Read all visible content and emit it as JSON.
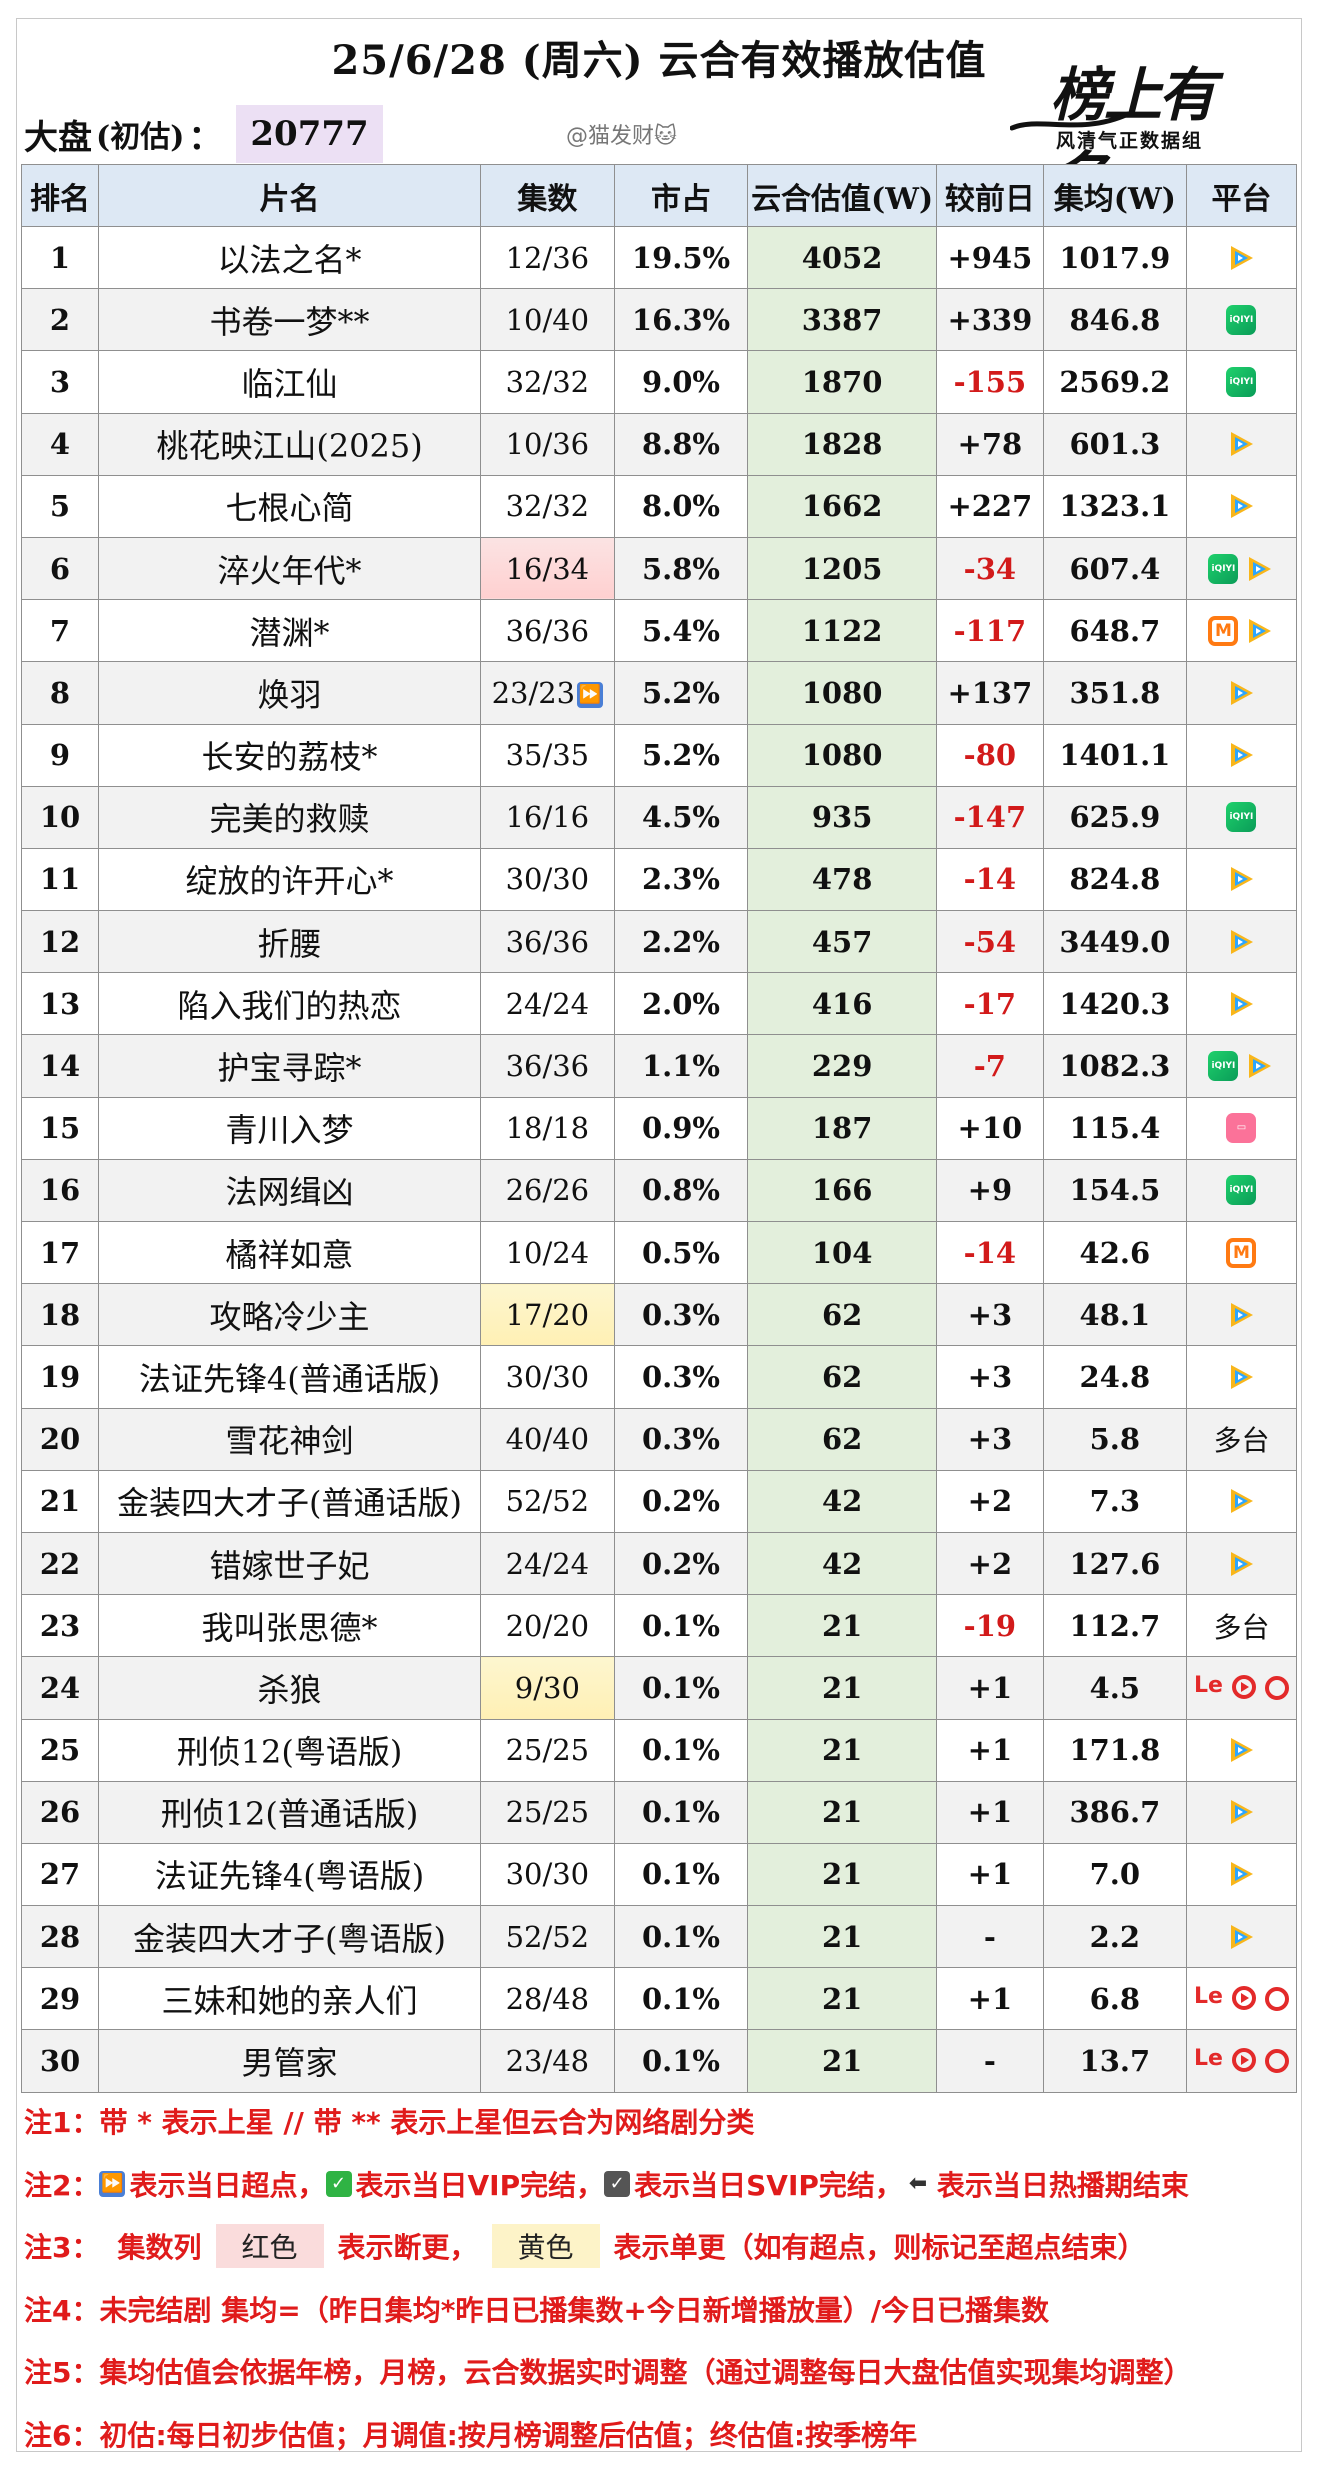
{
  "title": "25/6/28 (周六) 云合有效播放估值",
  "market": {
    "label": "大盘",
    "paren": "(初估)",
    "colon": "：",
    "value": "20777"
  },
  "watermark": "@猫发财🐱",
  "brand": {
    "script": "榜上有名",
    "subtitle": "风清气正数据组"
  },
  "columns": [
    "排名",
    "片名",
    "集数",
    "市占",
    "云合估值(W)",
    "较前日",
    "集均(W)",
    "平台"
  ],
  "rows": [
    {
      "rank": "1",
      "name": "以法之名*",
      "eps": "12/36",
      "share": "19.5%",
      "est": "4052",
      "chg": "+945",
      "avg": "1017.9",
      "plat": [
        "tencent"
      ]
    },
    {
      "rank": "2",
      "name": "书卷一梦**",
      "eps": "10/40",
      "share": "16.3%",
      "est": "3387",
      "chg": "+339",
      "avg": "846.8",
      "plat": [
        "iqiyi"
      ]
    },
    {
      "rank": "3",
      "name": "临江仙",
      "eps": "32/32",
      "share": "9.0%",
      "est": "1870",
      "chg": "-155",
      "avg": "2569.2",
      "plat": [
        "iqiyi"
      ]
    },
    {
      "rank": "4",
      "name": "桃花映江山(2025)",
      "eps": "10/36",
      "share": "8.8%",
      "est": "1828",
      "chg": "+78",
      "avg": "601.3",
      "plat": [
        "tencent"
      ]
    },
    {
      "rank": "5",
      "name": "七根心简",
      "eps": "32/32",
      "share": "8.0%",
      "est": "1662",
      "chg": "+227",
      "avg": "1323.1",
      "plat": [
        "tencent"
      ]
    },
    {
      "rank": "6",
      "name": "淬火年代*",
      "eps": "16/34",
      "share": "5.8%",
      "est": "1205",
      "chg": "-34",
      "avg": "607.4",
      "plat": [
        "iqiyi",
        "tencent"
      ],
      "eps_mark": "red"
    },
    {
      "rank": "7",
      "name": "潜渊*",
      "eps": "36/36",
      "share": "5.4%",
      "est": "1122",
      "chg": "-117",
      "avg": "648.7",
      "plat": [
        "mgtv",
        "tencent"
      ]
    },
    {
      "rank": "8",
      "name": "焕羽",
      "eps": "23/23",
      "share": "5.2%",
      "est": "1080",
      "chg": "+137",
      "avg": "351.8",
      "plat": [
        "tencent"
      ],
      "eps_icon": "fast-forward"
    },
    {
      "rank": "9",
      "name": "长安的荔枝*",
      "eps": "35/35",
      "share": "5.2%",
      "est": "1080",
      "chg": "-80",
      "avg": "1401.1",
      "plat": [
        "tencent"
      ]
    },
    {
      "rank": "10",
      "name": "完美的救赎",
      "eps": "16/16",
      "share": "4.5%",
      "est": "935",
      "chg": "-147",
      "avg": "625.9",
      "plat": [
        "iqiyi"
      ]
    },
    {
      "rank": "11",
      "name": "绽放的许开心*",
      "eps": "30/30",
      "share": "2.3%",
      "est": "478",
      "chg": "-14",
      "avg": "824.8",
      "plat": [
        "tencent"
      ]
    },
    {
      "rank": "12",
      "name": "折腰",
      "eps": "36/36",
      "share": "2.2%",
      "est": "457",
      "chg": "-54",
      "avg": "3449.0",
      "plat": [
        "tencent"
      ]
    },
    {
      "rank": "13",
      "name": "陷入我们的热恋",
      "eps": "24/24",
      "share": "2.0%",
      "est": "416",
      "chg": "-17",
      "avg": "1420.3",
      "plat": [
        "tencent"
      ]
    },
    {
      "rank": "14",
      "name": "护宝寻踪*",
      "eps": "36/36",
      "share": "1.1%",
      "est": "229",
      "chg": "-7",
      "avg": "1082.3",
      "plat": [
        "iqiyi",
        "tencent"
      ]
    },
    {
      "rank": "15",
      "name": "青川入梦",
      "eps": "18/18",
      "share": "0.9%",
      "est": "187",
      "chg": "+10",
      "avg": "115.4",
      "plat": [
        "bilibili"
      ]
    },
    {
      "rank": "16",
      "name": "法网缉凶",
      "eps": "26/26",
      "share": "0.8%",
      "est": "166",
      "chg": "+9",
      "avg": "154.5",
      "plat": [
        "iqiyi"
      ]
    },
    {
      "rank": "17",
      "name": "橘祥如意",
      "eps": "10/24",
      "share": "0.5%",
      "est": "104",
      "chg": "-14",
      "avg": "42.6",
      "plat": [
        "mgtv"
      ]
    },
    {
      "rank": "18",
      "name": "攻略冷少主",
      "eps": "17/20",
      "share": "0.3%",
      "est": "62",
      "chg": "+3",
      "avg": "48.1",
      "plat": [
        "tencent"
      ],
      "eps_mark": "yellow"
    },
    {
      "rank": "19",
      "name": "法证先锋4(普通话版)",
      "eps": "30/30",
      "share": "0.3%",
      "est": "62",
      "chg": "+3",
      "avg": "24.8",
      "plat": [
        "tencent"
      ]
    },
    {
      "rank": "20",
      "name": "雪花神剑",
      "eps": "40/40",
      "share": "0.3%",
      "est": "62",
      "chg": "+3",
      "avg": "5.8",
      "plat_text": "多台"
    },
    {
      "rank": "21",
      "name": "金装四大才子(普通话版)",
      "eps": "52/52",
      "share": "0.2%",
      "est": "42",
      "chg": "+2",
      "avg": "7.3",
      "plat": [
        "tencent"
      ]
    },
    {
      "rank": "22",
      "name": "错嫁世子妃",
      "eps": "24/24",
      "share": "0.2%",
      "est": "42",
      "chg": "+2",
      "avg": "127.6",
      "plat": [
        "tencent"
      ]
    },
    {
      "rank": "23",
      "name": "我叫张思德*",
      "eps": "20/20",
      "share": "0.1%",
      "est": "21",
      "chg": "-19",
      "avg": "112.7",
      "plat_text": "多台"
    },
    {
      "rank": "24",
      "name": "杀狼",
      "eps": "9/30",
      "share": "0.1%",
      "est": "21",
      "chg": "+1",
      "avg": "4.5",
      "plat": [
        "le",
        "youku",
        "red"
      ],
      "eps_mark": "yellow"
    },
    {
      "rank": "25",
      "name": "刑侦12(粤语版)",
      "eps": "25/25",
      "share": "0.1%",
      "est": "21",
      "chg": "+1",
      "avg": "171.8",
      "plat": [
        "tencent"
      ]
    },
    {
      "rank": "26",
      "name": "刑侦12(普通话版)",
      "eps": "25/25",
      "share": "0.1%",
      "est": "21",
      "chg": "+1",
      "avg": "386.7",
      "plat": [
        "tencent"
      ]
    },
    {
      "rank": "27",
      "name": "法证先锋4(粤语版)",
      "eps": "30/30",
      "share": "0.1%",
      "est": "21",
      "chg": "+1",
      "avg": "7.0",
      "plat": [
        "tencent"
      ]
    },
    {
      "rank": "28",
      "name": "金装四大才子(粤语版)",
      "eps": "52/52",
      "share": "0.1%",
      "est": "21",
      "chg": "-",
      "avg": "2.2",
      "plat": [
        "tencent"
      ]
    },
    {
      "rank": "29",
      "name": "三妹和她的亲人们",
      "eps": "28/48",
      "share": "0.1%",
      "est": "21",
      "chg": "+1",
      "avg": "6.8",
      "plat": [
        "le",
        "youku",
        "red"
      ]
    },
    {
      "rank": "30",
      "name": "男管家",
      "eps": "23/48",
      "share": "0.1%",
      "est": "21",
      "chg": "-",
      "avg": "13.7",
      "plat": [
        "le",
        "youku",
        "red"
      ]
    }
  ],
  "notes": {
    "n1": "注1：带 * 表示上星 // 带 ** 表示上星但云合为网络剧分类",
    "n2_a": "注2：",
    "n2_b": "表示当日超点，",
    "n2_c": "表示当日VIP完结，",
    "n2_d": "表示当日SVIP完结，",
    "n2_e": "表示当日热播期结束",
    "n3_a": "注3：",
    "n3_b": "集数列",
    "n3_red": "红色",
    "n3_c": "表示断更，",
    "n3_yellow": "黄色",
    "n3_d": "表示单更（如有超点，则标记至超点结束）",
    "n4": "注4：未完结剧 集均=（昨日集均*昨日已播集数+今日新增播放量）/今日已播集数",
    "n5": "注5：集均估值会依据年榜，月榜，云合数据实时调整（通过调整每日大盘估值实现集均调整）",
    "n6": "注6：初估:每日初步估值；月调值:按月榜调整后估值；终估值:按季榜年"
  },
  "colors": {
    "header_bg": "#dde8f4",
    "est_bg": "#e3efdc",
    "neg": "#d21a1a",
    "note": "#e01b1b"
  }
}
